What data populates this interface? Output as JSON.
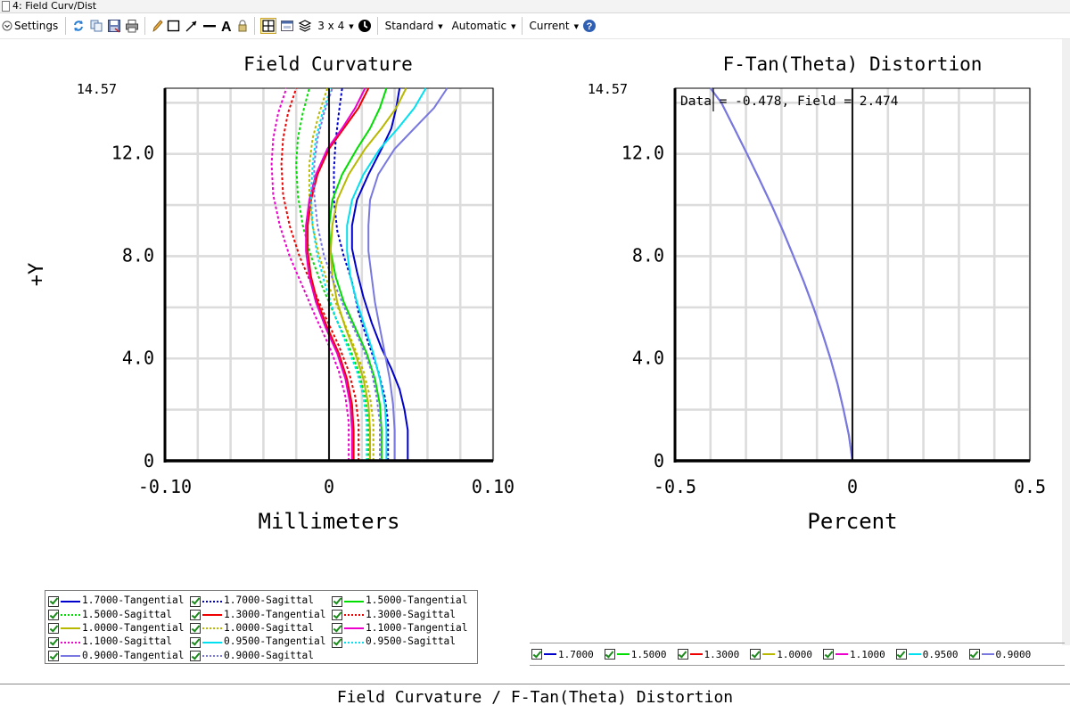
{
  "window": {
    "title": "4: Field Curv/Dist"
  },
  "toolbar": {
    "settings_label": "Settings",
    "layout_label": "3 x 4",
    "standard_label": "Standard",
    "automatic_label": "Automatic",
    "current_label": "Current"
  },
  "caption": "Field Curvature / F-Tan(Theta) Distortion",
  "chart_data": [
    {
      "type": "line",
      "title": "Field Curvature",
      "xlabel": "Millimeters",
      "ylabel": "+Y",
      "xlim": [
        -0.1,
        0.1
      ],
      "ylim": [
        0,
        14.57
      ],
      "x_ticks": [
        "-0.10",
        "0",
        "0.10"
      ],
      "y_ticks": [
        "0",
        "4.0",
        "8.0",
        "12.0"
      ],
      "y_max_label": "14.57",
      "grid": true,
      "series": [
        {
          "name": "1.7000-Tangential",
          "color": "#0000cc",
          "dash": "solid",
          "points": [
            [
              0.048,
              0
            ],
            [
              0.048,
              1.2
            ],
            [
              0.046,
              2.0
            ],
            [
              0.043,
              2.8
            ],
            [
              0.038,
              3.6
            ],
            [
              0.032,
              4.4
            ],
            [
              0.026,
              5.4
            ],
            [
              0.021,
              6.4
            ],
            [
              0.017,
              7.4
            ],
            [
              0.014,
              8.3
            ],
            [
              0.014,
              9.2
            ],
            [
              0.017,
              10.2
            ],
            [
              0.024,
              11.2
            ],
            [
              0.032,
              12.2
            ],
            [
              0.038,
              13.0
            ],
            [
              0.041,
              13.8
            ],
            [
              0.043,
              14.57
            ]
          ]
        },
        {
          "name": "1.7000-Sagittal",
          "color": "#0000cc",
          "dash": "dot",
          "points": [
            [
              0.036,
              0
            ],
            [
              0.036,
              1.5
            ],
            [
              0.034,
              2.5
            ],
            [
              0.03,
              3.5
            ],
            [
              0.024,
              4.6
            ],
            [
              0.018,
              5.8
            ],
            [
              0.014,
              7.0
            ],
            [
              0.009,
              8.0
            ],
            [
              0.005,
              9.0
            ],
            [
              0.003,
              10.2
            ],
            [
              0.003,
              11.4
            ],
            [
              0.004,
              12.5
            ],
            [
              0.006,
              13.6
            ],
            [
              0.008,
              14.57
            ]
          ]
        },
        {
          "name": "1.5000-Tangential",
          "color": "#00dd00",
          "dash": "solid",
          "points": [
            [
              0.032,
              0
            ],
            [
              0.032,
              1.2
            ],
            [
              0.031,
              2.2
            ],
            [
              0.028,
              3.2
            ],
            [
              0.023,
              4.2
            ],
            [
              0.016,
              5.2
            ],
            [
              0.009,
              6.2
            ],
            [
              0.004,
              7.2
            ],
            [
              0.001,
              8.2
            ],
            [
              0.0,
              9.2
            ],
            [
              0.002,
              10.2
            ],
            [
              0.008,
              11.2
            ],
            [
              0.017,
              12.2
            ],
            [
              0.025,
              13.0
            ],
            [
              0.031,
              13.8
            ],
            [
              0.035,
              14.57
            ]
          ]
        },
        {
          "name": "1.5000-Sagittal",
          "color": "#00dd00",
          "dash": "dot",
          "points": [
            [
              0.024,
              0
            ],
            [
              0.024,
              1.5
            ],
            [
              0.022,
              2.5
            ],
            [
              0.018,
              3.5
            ],
            [
              0.012,
              4.5
            ],
            [
              0.004,
              5.6
            ],
            [
              -0.004,
              6.8
            ],
            [
              -0.011,
              8.0
            ],
            [
              -0.016,
              9.2
            ],
            [
              -0.019,
              10.4
            ],
            [
              -0.02,
              11.6
            ],
            [
              -0.019,
              12.6
            ],
            [
              -0.016,
              13.6
            ],
            [
              -0.012,
              14.57
            ]
          ]
        },
        {
          "name": "1.3000-Tangential",
          "color": "#ee0000",
          "dash": "solid",
          "points": [
            [
              0.015,
              0
            ],
            [
              0.015,
              1.2
            ],
            [
              0.014,
              2.2
            ],
            [
              0.011,
              3.2
            ],
            [
              0.006,
              4.2
            ],
            [
              -0.001,
              5.2
            ],
            [
              -0.007,
              6.2
            ],
            [
              -0.011,
              7.2
            ],
            [
              -0.013,
              8.2
            ],
            [
              -0.013,
              9.2
            ],
            [
              -0.011,
              10.2
            ],
            [
              -0.007,
              11.2
            ],
            [
              0.0,
              12.2
            ],
            [
              0.009,
              13.0
            ],
            [
              0.018,
              13.8
            ],
            [
              0.024,
              14.57
            ]
          ]
        },
        {
          "name": "1.3000-Sagittal",
          "color": "#ee0000",
          "dash": "dot",
          "points": [
            [
              0.018,
              0
            ],
            [
              0.018,
              1.5
            ],
            [
              0.016,
              2.5
            ],
            [
              0.012,
              3.5
            ],
            [
              0.006,
              4.5
            ],
            [
              -0.002,
              5.6
            ],
            [
              -0.01,
              6.8
            ],
            [
              -0.018,
              8.0
            ],
            [
              -0.024,
              9.2
            ],
            [
              -0.028,
              10.4
            ],
            [
              -0.029,
              11.6
            ],
            [
              -0.028,
              12.6
            ],
            [
              -0.025,
              13.6
            ],
            [
              -0.02,
              14.57
            ]
          ]
        },
        {
          "name": "1.0000-Tangential",
          "color": "#b8b800",
          "dash": "solid",
          "points": [
            [
              0.025,
              0
            ],
            [
              0.025,
              1.2
            ],
            [
              0.024,
              2.2
            ],
            [
              0.021,
              3.2
            ],
            [
              0.016,
              4.2
            ],
            [
              0.01,
              5.2
            ],
            [
              0.005,
              6.2
            ],
            [
              0.002,
              7.2
            ],
            [
              0.001,
              8.2
            ],
            [
              0.002,
              9.2
            ],
            [
              0.005,
              10.2
            ],
            [
              0.012,
              11.2
            ],
            [
              0.022,
              12.2
            ],
            [
              0.032,
              13.0
            ],
            [
              0.041,
              13.8
            ],
            [
              0.047,
              14.57
            ]
          ]
        },
        {
          "name": "1.0000-Sagittal",
          "color": "#b8b800",
          "dash": "dot",
          "points": [
            [
              0.027,
              0
            ],
            [
              0.027,
              1.5
            ],
            [
              0.025,
              2.5
            ],
            [
              0.021,
              3.5
            ],
            [
              0.015,
              4.5
            ],
            [
              0.008,
              5.6
            ],
            [
              0.0,
              6.8
            ],
            [
              -0.006,
              8.0
            ],
            [
              -0.01,
              9.2
            ],
            [
              -0.012,
              10.4
            ],
            [
              -0.012,
              11.6
            ],
            [
              -0.01,
              12.6
            ],
            [
              -0.006,
              13.6
            ],
            [
              -0.001,
              14.57
            ]
          ]
        },
        {
          "name": "1.1000-Tangential",
          "color": "#ee00cc",
          "dash": "solid",
          "points": [
            [
              0.014,
              0
            ],
            [
              0.014,
              1.2
            ],
            [
              0.013,
              2.2
            ],
            [
              0.01,
              3.2
            ],
            [
              0.005,
              4.2
            ],
            [
              -0.002,
              5.2
            ],
            [
              -0.008,
              6.2
            ],
            [
              -0.012,
              7.2
            ],
            [
              -0.014,
              8.2
            ],
            [
              -0.014,
              9.2
            ],
            [
              -0.012,
              10.2
            ],
            [
              -0.008,
              11.2
            ],
            [
              -0.001,
              12.2
            ],
            [
              0.008,
              13.0
            ],
            [
              0.016,
              13.8
            ],
            [
              0.022,
              14.57
            ]
          ]
        },
        {
          "name": "1.1000-Sagittal",
          "color": "#ee00cc",
          "dash": "dot",
          "points": [
            [
              0.012,
              0
            ],
            [
              0.012,
              1.5
            ],
            [
              0.01,
              2.5
            ],
            [
              0.006,
              3.5
            ],
            [
              0.0,
              4.5
            ],
            [
              -0.008,
              5.6
            ],
            [
              -0.016,
              6.8
            ],
            [
              -0.024,
              8.0
            ],
            [
              -0.03,
              9.2
            ],
            [
              -0.034,
              10.4
            ],
            [
              -0.035,
              11.6
            ],
            [
              -0.034,
              12.6
            ],
            [
              -0.031,
              13.6
            ],
            [
              -0.026,
              14.57
            ]
          ]
        },
        {
          "name": "0.9500-Tangential",
          "color": "#00e0f0",
          "dash": "solid",
          "points": [
            [
              0.035,
              0
            ],
            [
              0.035,
              1.2
            ],
            [
              0.034,
              2.2
            ],
            [
              0.031,
              3.2
            ],
            [
              0.027,
              4.2
            ],
            [
              0.022,
              5.2
            ],
            [
              0.017,
              6.2
            ],
            [
              0.013,
              7.2
            ],
            [
              0.011,
              8.2
            ],
            [
              0.011,
              9.2
            ],
            [
              0.014,
              10.2
            ],
            [
              0.021,
              11.2
            ],
            [
              0.031,
              12.2
            ],
            [
              0.042,
              13.0
            ],
            [
              0.052,
              13.8
            ],
            [
              0.059,
              14.57
            ]
          ]
        },
        {
          "name": "0.9500-Sagittal",
          "color": "#00e0f0",
          "dash": "dot",
          "points": [
            [
              0.023,
              0
            ],
            [
              0.023,
              1.5
            ],
            [
              0.021,
              2.5
            ],
            [
              0.017,
              3.5
            ],
            [
              0.011,
              4.5
            ],
            [
              0.004,
              5.6
            ],
            [
              -0.002,
              6.8
            ],
            [
              -0.007,
              8.0
            ],
            [
              -0.01,
              9.2
            ],
            [
              -0.011,
              10.4
            ],
            [
              -0.01,
              11.6
            ],
            [
              -0.008,
              12.6
            ],
            [
              -0.004,
              13.6
            ],
            [
              0.001,
              14.57
            ]
          ]
        },
        {
          "name": "0.9000-Tangential",
          "color": "#7878e0",
          "dash": "solid",
          "points": [
            [
              0.04,
              0
            ],
            [
              0.04,
              1.2
            ],
            [
              0.039,
              2.2
            ],
            [
              0.037,
              3.2
            ],
            [
              0.034,
              4.2
            ],
            [
              0.031,
              5.2
            ],
            [
              0.028,
              6.2
            ],
            [
              0.026,
              7.2
            ],
            [
              0.024,
              8.2
            ],
            [
              0.024,
              9.2
            ],
            [
              0.025,
              10.2
            ],
            [
              0.03,
              11.2
            ],
            [
              0.04,
              12.2
            ],
            [
              0.052,
              13.0
            ],
            [
              0.064,
              13.8
            ],
            [
              0.072,
              14.57
            ]
          ]
        },
        {
          "name": "0.9000-Sagittal",
          "color": "#7878e0",
          "dash": "dot",
          "points": [
            [
              0.031,
              0
            ],
            [
              0.031,
              1.5
            ],
            [
              0.029,
              2.5
            ],
            [
              0.026,
              3.5
            ],
            [
              0.02,
              4.5
            ],
            [
              0.012,
              5.6
            ],
            [
              0.004,
              6.8
            ],
            [
              -0.003,
              8.0
            ],
            [
              -0.007,
              9.2
            ],
            [
              -0.009,
              10.4
            ],
            [
              -0.009,
              11.6
            ],
            [
              -0.007,
              12.6
            ],
            [
              -0.003,
              13.6
            ],
            [
              0.002,
              14.57
            ]
          ]
        }
      ]
    },
    {
      "type": "line",
      "title": "F-Tan(Theta) Distortion",
      "xlabel": "Percent",
      "xlim": [
        -0.5,
        0.5
      ],
      "ylim": [
        0,
        14.57
      ],
      "x_ticks": [
        "-0.5",
        "0",
        "0.5"
      ],
      "y_ticks": [
        "0",
        "4.0",
        "8.0",
        "12.0"
      ],
      "y_max_label": "14.57",
      "grid": true,
      "annotation": "Data = -0.478, Field = 2.474",
      "series": [
        {
          "name": "1.7000",
          "color": "#0000cc"
        },
        {
          "name": "1.5000",
          "color": "#00dd00"
        },
        {
          "name": "1.3000",
          "color": "#ee0000"
        },
        {
          "name": "1.0000",
          "color": "#b8b800"
        },
        {
          "name": "1.1000",
          "color": "#ee00cc"
        },
        {
          "name": "0.9500",
          "color": "#00e0f0"
        },
        {
          "name": "0.9000",
          "color": "#7878e0"
        }
      ],
      "curve": [
        [
          0.0,
          0
        ],
        [
          -0.01,
          1.0
        ],
        [
          -0.025,
          2.0
        ],
        [
          -0.042,
          3.0
        ],
        [
          -0.062,
          4.0
        ],
        [
          -0.085,
          5.0
        ],
        [
          -0.11,
          6.0
        ],
        [
          -0.137,
          7.0
        ],
        [
          -0.166,
          8.0
        ],
        [
          -0.196,
          9.0
        ],
        [
          -0.228,
          10.0
        ],
        [
          -0.262,
          11.0
        ],
        [
          -0.297,
          12.0
        ],
        [
          -0.333,
          13.0
        ],
        [
          -0.369,
          14.0
        ],
        [
          -0.4,
          14.57
        ]
      ]
    }
  ]
}
